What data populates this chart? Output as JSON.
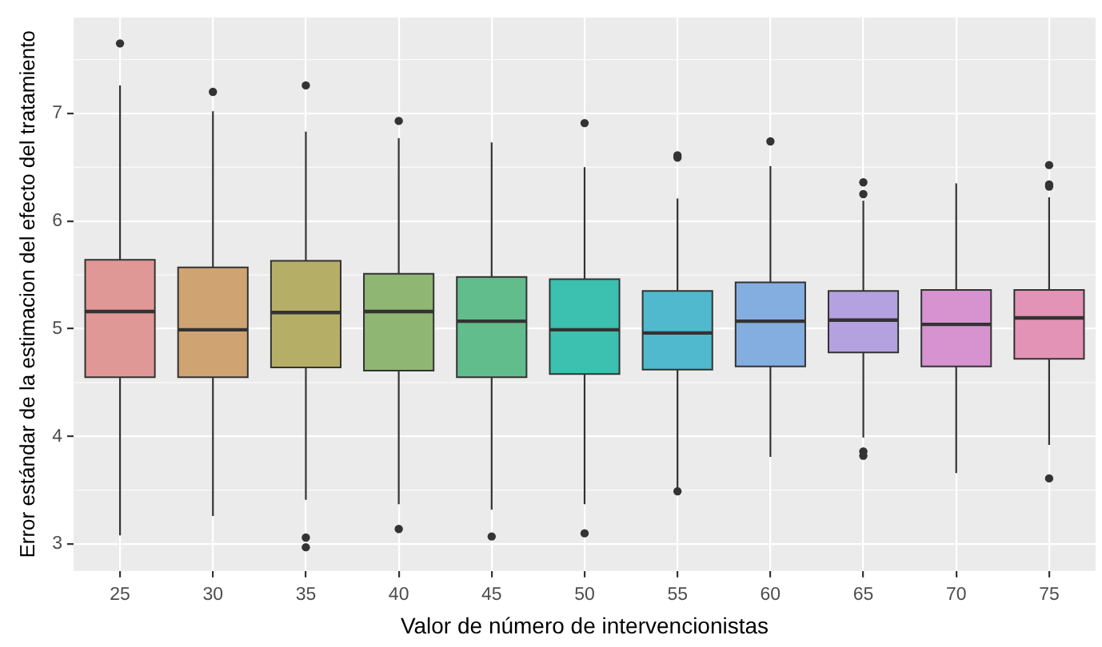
{
  "chart_data": {
    "type": "box",
    "xlabel": "Valor de número de intervencionistas",
    "ylabel": "Error estándar de la estimacion del efecto del tratamiento",
    "categories": [
      "25",
      "30",
      "35",
      "40",
      "45",
      "50",
      "55",
      "60",
      "65",
      "70",
      "75"
    ],
    "colors": [
      "#e09896",
      "#d0a373",
      "#b5ae66",
      "#8fb673",
      "#61bd8b",
      "#3cc0af",
      "#50b9ce",
      "#85aee0",
      "#b4a1e0",
      "#d693d0",
      "#e393b5"
    ],
    "boxes": [
      {
        "low": 3.08,
        "q1": 4.55,
        "median": 5.16,
        "q3": 5.64,
        "high": 7.26,
        "outliers": [
          7.65
        ]
      },
      {
        "low": 3.26,
        "q1": 4.55,
        "median": 4.99,
        "q3": 5.57,
        "high": 7.02,
        "outliers": [
          7.2
        ]
      },
      {
        "low": 3.41,
        "q1": 4.64,
        "median": 5.15,
        "q3": 5.63,
        "high": 6.83,
        "outliers": [
          7.26,
          3.06,
          2.97
        ]
      },
      {
        "low": 3.37,
        "q1": 4.61,
        "median": 5.16,
        "q3": 5.51,
        "high": 6.77,
        "outliers": [
          6.93,
          3.14
        ]
      },
      {
        "low": 3.32,
        "q1": 4.55,
        "median": 5.07,
        "q3": 5.48,
        "high": 6.73,
        "outliers": [
          3.07
        ]
      },
      {
        "low": 3.37,
        "q1": 4.58,
        "median": 4.99,
        "q3": 5.46,
        "high": 6.5,
        "outliers": [
          6.91,
          3.1
        ]
      },
      {
        "low": 3.52,
        "q1": 4.62,
        "median": 4.96,
        "q3": 5.35,
        "high": 6.21,
        "outliers": [
          6.61,
          6.59,
          3.49
        ]
      },
      {
        "low": 3.81,
        "q1": 4.65,
        "median": 5.07,
        "q3": 5.43,
        "high": 6.51,
        "outliers": [
          6.74
        ]
      },
      {
        "low": 3.99,
        "q1": 4.78,
        "median": 5.08,
        "q3": 5.35,
        "high": 6.19,
        "outliers": [
          6.36,
          6.25,
          3.86,
          3.82
        ]
      },
      {
        "low": 3.66,
        "q1": 4.65,
        "median": 5.04,
        "q3": 5.36,
        "high": 6.35
      },
      {
        "low": 3.92,
        "q1": 4.72,
        "median": 5.1,
        "q3": 5.36,
        "high": 6.22,
        "outliers": [
          6.52,
          6.34,
          6.32,
          3.61
        ]
      }
    ],
    "ylim": [
      2.75,
      7.89
    ],
    "yticks": [
      3,
      4,
      5,
      6,
      7
    ],
    "grid": true
  }
}
